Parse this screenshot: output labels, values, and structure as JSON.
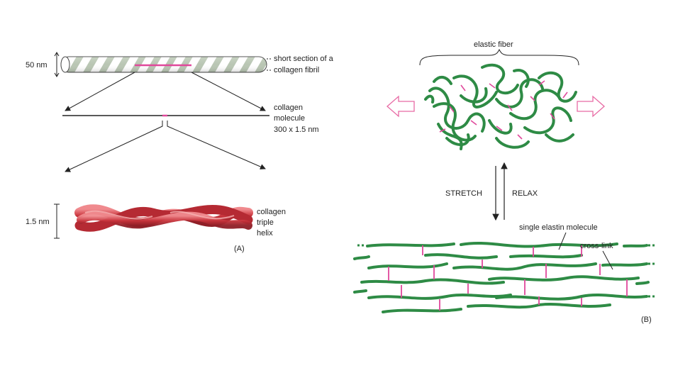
{
  "panel_a": {
    "fibril_diameter": "50 nm",
    "fibril_label_line1": "short section of a",
    "fibril_label_line2": "collagen fibril",
    "molecule_label_line1": "collagen",
    "molecule_label_line2": "molecule",
    "molecule_label_line3": "300 x 1.5 nm",
    "helix_diameter": "1.5 nm",
    "helix_label_line1": "collagen",
    "helix_label_line2": "triple",
    "helix_label_line3": "helix",
    "panel_letter": "(A)"
  },
  "panel_b": {
    "fiber_label": "elastic fiber",
    "stretch_label": "STRETCH",
    "relax_label": "RELAX",
    "molecule_label": "single elastin molecule",
    "crosslink_label": "cross-link",
    "panel_letter": "(B)"
  },
  "colors": {
    "elastin": "#2e8b45",
    "crosslink": "#e0489b",
    "collagen": "#c8333b",
    "arrow_outline": "#e86aa4",
    "fibril_stripe": "#b9c6b3"
  }
}
